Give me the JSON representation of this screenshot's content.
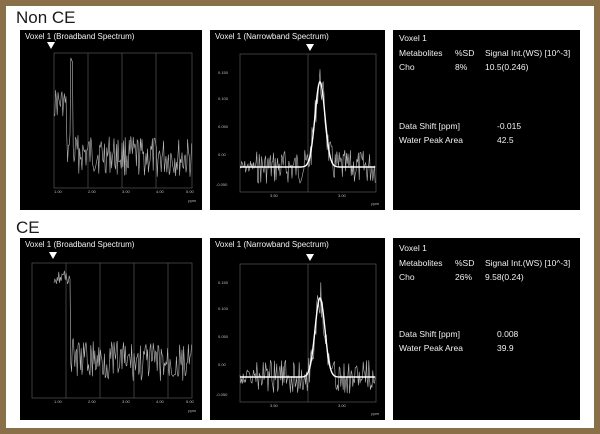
{
  "sections": [
    {
      "title": "Non CE",
      "broadband": {
        "title": "Voxel 1 (Broadband Spectrum)",
        "x_ticks": [
          "1.00",
          "2.00",
          "3.00",
          "4.00",
          "5.00"
        ],
        "unit": "ppm"
      },
      "narrowband": {
        "title": "Voxel 1 (Narrowband Spectrum)",
        "y_ticks": [
          "0.150",
          "0.100",
          "0.050",
          "0.00",
          "-0.050"
        ],
        "x_ticks": [
          "3.50",
          "3.00"
        ],
        "unit": "ppm"
      },
      "info": {
        "voxel": "Voxel 1",
        "headers": [
          "Metabolites",
          "%SD",
          "Signal Int.(WS) [10^-3]"
        ],
        "row": {
          "metabolite": "Cho",
          "sd": "8%",
          "signal": "10.5(0.246)"
        },
        "data_shift_label": "Data Shift [ppm]",
        "data_shift_value": "-0.015",
        "water_peak_label": "Water Peak Area",
        "water_peak_value": "42.5"
      }
    },
    {
      "title": "CE",
      "broadband": {
        "title": "Voxel 1 (Broadband Spectrum)",
        "x_ticks": [
          "1.00",
          "2.00",
          "3.00",
          "4.00",
          "5.00"
        ],
        "unit": "ppm"
      },
      "narrowband": {
        "title": "Voxel 1 (Narrowband Spectrum)",
        "y_ticks": [
          "0.150",
          "0.100",
          "0.050",
          "0.00",
          "-0.050"
        ],
        "x_ticks": [
          "3.50",
          "3.00"
        ],
        "unit": "ppm"
      },
      "info": {
        "voxel": "Voxel 1",
        "headers": [
          "Metabolites",
          "%SD",
          "Signal Int.(WS) [10^-3]"
        ],
        "row": {
          "metabolite": "Cho",
          "sd": "26%",
          "signal": "9.58(0.24)"
        },
        "data_shift_label": "Data Shift [ppm]",
        "data_shift_value": "0.008",
        "water_peak_label": "Water Peak Area",
        "water_peak_value": "39.9"
      }
    }
  ],
  "colors": {
    "background": "#000000",
    "trace": "#bbbbbb",
    "fit": "#ffffff",
    "grid": "#555555",
    "border": "#8a7048"
  }
}
